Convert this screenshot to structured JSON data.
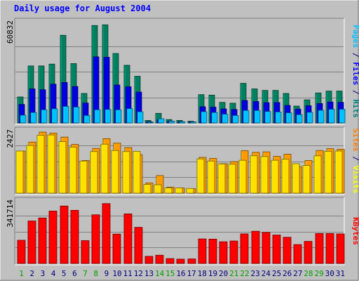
{
  "chart_data": {
    "type": "bar",
    "title": "Daily usage for August 2004",
    "categories": [
      "1",
      "2",
      "3",
      "4",
      "5",
      "6",
      "7",
      "8",
      "9",
      "10",
      "11",
      "12",
      "13",
      "14",
      "15",
      "16",
      "17",
      "18",
      "19",
      "20",
      "21",
      "22",
      "23",
      "24",
      "25",
      "26",
      "27",
      "28",
      "29",
      "30",
      "31"
    ],
    "weekend_days": [
      "1",
      "7",
      "8",
      "14",
      "15",
      "21",
      "22",
      "28",
      "29"
    ],
    "panels": [
      {
        "id": "hits",
        "max_label": "60832",
        "ymax": 60832,
        "title_parts": [
          {
            "text": "Pages",
            "color": "#00C0FF"
          },
          {
            "text": " / ",
            "color": "#000080"
          },
          {
            "text": "Files",
            "color": "#0000FF"
          },
          {
            "text": " / ",
            "color": "#000080"
          },
          {
            "text": "Hits",
            "color": "#008080"
          }
        ],
        "series": [
          {
            "name": "Hits",
            "color": "#008060",
            "values": [
              15400,
              33800,
              33800,
              34900,
              52000,
              35200,
              17500,
              57800,
              58200,
              41200,
              34200,
              27700,
              1500,
              5700,
              2000,
              1500,
              1000,
              16800,
              16500,
              12200,
              11700,
              23500,
              20200,
              19300,
              19300,
              17500,
              10000,
              13700,
              17800,
              18900,
              18900
            ]
          },
          {
            "name": "Files",
            "color": "#0000E0",
            "values": [
              11000,
              20200,
              19700,
              23000,
              24000,
              21600,
              11800,
              39200,
              39000,
              22500,
              21500,
              18300,
              700,
              1900,
              1100,
              750,
              600,
              9600,
              9400,
              8300,
              8000,
              13300,
              12700,
              12000,
              12100,
              10400,
              8200,
              10200,
              11500,
              12400,
              12200
            ]
          },
          {
            "name": "Pages",
            "color": "#00C0FF",
            "values": [
              4600,
              6200,
              7800,
              8400,
              9800,
              9400,
              4400,
              7800,
              8000,
              7800,
              8500,
              6600,
              200,
              2500,
              1000,
              650,
              550,
              6700,
              6200,
              5200,
              4400,
              7400,
              7400,
              6800,
              6500,
              6000,
              4900,
              6300,
              7500,
              8100,
              8100
            ]
          }
        ]
      },
      {
        "id": "visits",
        "max_label": "2427",
        "ymax": 2427,
        "title_parts": [
          {
            "text": "Sites",
            "color": "#FF8000"
          },
          {
            "text": " / ",
            "color": "#000080"
          },
          {
            "text": "Visits",
            "color": "#FFFF00"
          }
        ],
        "series": [
          {
            "name": "Visits",
            "color": "#FF9900",
            "values": [
              1600,
              1940,
              2320,
              2280,
              2130,
              1850,
              1240,
              1700,
              2070,
              1900,
              1730,
              1460,
              390,
              670,
              230,
              200,
              170,
              1360,
              1320,
              1120,
              1200,
              1610,
              1550,
              1570,
              1400,
              1480,
              1010,
              1240,
              1620,
              1690,
              1670
            ]
          },
          {
            "name": "Sites",
            "color": "#FFE000",
            "values": [
              1600,
              1810,
              2200,
              2210,
              1960,
              1750,
              1220,
              1580,
              1860,
              1620,
              1580,
              1590,
              330,
              320,
              200,
              200,
              180,
              1300,
              1220,
              1110,
              1100,
              1250,
              1420,
              1390,
              1250,
              1290,
              1120,
              1050,
              1420,
              1590,
              1600
            ]
          }
        ]
      },
      {
        "id": "kbytes",
        "max_label": "341714",
        "ymax": 341714,
        "title_parts": [
          {
            "text": "KBytes",
            "color": "#FF0000"
          }
        ],
        "series": [
          {
            "name": "KBytes",
            "color": "#FF0000",
            "values": [
              124000,
              227000,
              243000,
              280000,
              307000,
              284000,
              122000,
              260000,
              320000,
              157000,
              265000,
              193000,
              38000,
              44000,
              26000,
              23000,
              24000,
              131000,
              130000,
              116000,
              120000,
              158000,
              172000,
              166000,
              152000,
              140000,
              101000,
              118000,
              160000,
              160000,
              158000
            ]
          }
        ]
      }
    ]
  },
  "colors": {
    "background": "#C0C0C0",
    "title": "#0000FF",
    "weekday_label": "#000080",
    "weekend_label": "#00A000",
    "grid": "#808080",
    "max_label": "#000000"
  }
}
